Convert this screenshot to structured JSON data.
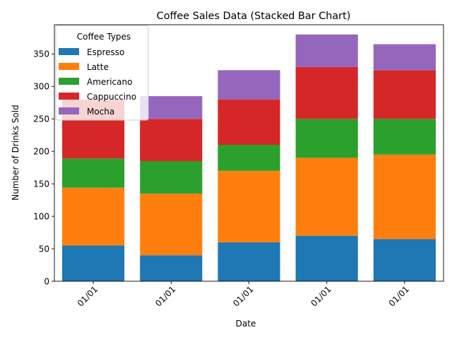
{
  "chart_data": {
    "type": "bar",
    "stacked": true,
    "title": "Coffee Sales Data (Stacked Bar Chart)",
    "xlabel": "Date",
    "ylabel": "Number of Drinks Sold",
    "categories": [
      "01/01",
      "01/01",
      "01/01",
      "01/01",
      "01/01"
    ],
    "series": [
      {
        "name": "Espresso",
        "color": "#1f77b4",
        "values": [
          55,
          40,
          60,
          70,
          65
        ]
      },
      {
        "name": "Latte",
        "color": "#ff7f0e",
        "values": [
          89,
          95,
          110,
          120,
          130
        ]
      },
      {
        "name": "Americano",
        "color": "#2ca02c",
        "values": [
          45,
          50,
          40,
          60,
          55
        ]
      },
      {
        "name": "Cappuccino",
        "color": "#d62728",
        "values": [
          91,
          65,
          70,
          80,
          75
        ]
      },
      {
        "name": "Mocha",
        "color": "#9467bd",
        "values": [
          0,
          35,
          45,
          50,
          40
        ]
      }
    ],
    "ylim": [
      0,
      395
    ],
    "yticks": [
      0,
      50,
      100,
      150,
      200,
      250,
      300,
      350
    ],
    "grid": false,
    "legend": {
      "title": "Coffee Types",
      "placement": "top-left"
    }
  }
}
